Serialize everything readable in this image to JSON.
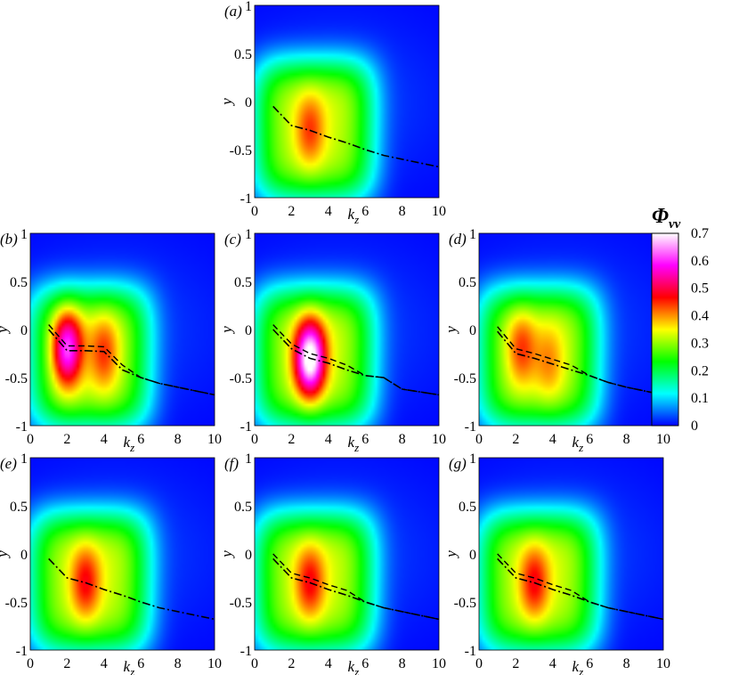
{
  "chart_data": {
    "type": "heatmap",
    "colorbar": {
      "title": "Φvv",
      "title_main": "Φ",
      "title_sub": "vv",
      "range": [
        0,
        0.7
      ],
      "ticks": [
        "0.7",
        "0.6",
        "0.5",
        "0.4",
        "0.3",
        "0.2",
        "0.1",
        "0"
      ],
      "colormap": [
        "#0000ff",
        "#00ffff",
        "#00ff00",
        "#ffff00",
        "#ff0000",
        "#ff00ff",
        "#ffffff"
      ]
    },
    "xlabel_main": "k",
    "xlabel_sub": "z",
    "ylabel": "y",
    "xlim": [
      0,
      10
    ],
    "ylim": [
      -1,
      1
    ],
    "xticks": [
      "0",
      "2",
      "4",
      "6",
      "8",
      "10"
    ],
    "yticks": [
      "1",
      "0.5",
      "0",
      "-0.5",
      "-1"
    ],
    "panels": [
      {
        "label": "(a)",
        "label_open": "(",
        "label_letter": "a",
        "label_close": ")",
        "peaks": [
          {
            "kz": 3.0,
            "y": -0.3,
            "amp": 0.42
          }
        ],
        "dash_style": "dashdot",
        "curve_kz": [
          1,
          2,
          3,
          4,
          5,
          6,
          7,
          8,
          9,
          10
        ],
        "curve_y": [
          -0.05,
          -0.25,
          -0.3,
          -0.37,
          -0.43,
          -0.5,
          -0.56,
          -0.6,
          -0.64,
          -0.68
        ]
      },
      {
        "label": "(b)",
        "label_open": "(",
        "label_letter": "b",
        "label_close": ")",
        "peaks": [
          {
            "kz": 2.0,
            "y": -0.2,
            "amp": 0.6
          },
          {
            "kz": 4.0,
            "y": -0.25,
            "amp": 0.42
          }
        ],
        "dash_style": "mixed",
        "curve_kz": [
          1,
          2,
          3,
          4,
          5,
          6,
          7,
          8,
          9,
          10
        ],
        "curve_y": [
          0.0,
          -0.22,
          -0.22,
          -0.23,
          -0.42,
          -0.5,
          -0.56,
          -0.6,
          -0.64,
          -0.68
        ]
      },
      {
        "label": "(c)",
        "label_open": "(",
        "label_letter": "c",
        "label_close": ")",
        "peaks": [
          {
            "kz": 3.0,
            "y": -0.3,
            "amp": 0.72
          }
        ],
        "dash_style": "mixed",
        "curve_kz": [
          1,
          2,
          3,
          4,
          5,
          6,
          7,
          8,
          9,
          10
        ],
        "curve_y": [
          0.0,
          -0.2,
          -0.3,
          -0.35,
          -0.42,
          -0.48,
          -0.5,
          -0.62,
          -0.65,
          -0.68
        ]
      },
      {
        "label": "(d)",
        "label_open": "(",
        "label_letter": "d",
        "label_close": ")",
        "peaks": [
          {
            "kz": 2.3,
            "y": -0.2,
            "amp": 0.42
          },
          {
            "kz": 3.8,
            "y": -0.35,
            "amp": 0.38
          }
        ],
        "dash_style": "mixed",
        "curve_kz": [
          1,
          2,
          3,
          4,
          5,
          6,
          7,
          8,
          9,
          10
        ],
        "curve_y": [
          -0.02,
          -0.25,
          -0.3,
          -0.36,
          -0.42,
          -0.48,
          -0.55,
          -0.6,
          -0.64,
          -0.68
        ]
      },
      {
        "label": "(e)",
        "label_open": "(",
        "label_letter": "e",
        "label_close": ")",
        "peaks": [
          {
            "kz": 3.0,
            "y": -0.3,
            "amp": 0.45
          }
        ],
        "dash_style": "dashdot",
        "curve_kz": [
          1,
          2,
          3,
          4,
          5,
          6,
          7,
          8,
          9,
          10
        ],
        "curve_y": [
          -0.05,
          -0.25,
          -0.3,
          -0.37,
          -0.43,
          -0.5,
          -0.56,
          -0.6,
          -0.64,
          -0.68
        ]
      },
      {
        "label": "(f)",
        "label_open": "(",
        "label_letter": "f",
        "label_close": ")",
        "peaks": [
          {
            "kz": 3.0,
            "y": -0.3,
            "amp": 0.45
          }
        ],
        "dash_style": "mixed",
        "curve_kz": [
          1,
          2,
          3,
          4,
          5,
          6,
          7,
          8,
          9,
          10
        ],
        "curve_y": [
          -0.05,
          -0.25,
          -0.3,
          -0.37,
          -0.43,
          -0.5,
          -0.56,
          -0.6,
          -0.64,
          -0.68
        ]
      },
      {
        "label": "(g)",
        "label_open": "(",
        "label_letter": "g",
        "label_close": ")",
        "peaks": [
          {
            "kz": 3.0,
            "y": -0.3,
            "amp": 0.45
          }
        ],
        "dash_style": "mixed",
        "curve_kz": [
          1,
          2,
          3,
          4,
          5,
          6,
          7,
          8,
          9,
          10
        ],
        "curve_y": [
          -0.05,
          -0.25,
          -0.3,
          -0.37,
          -0.43,
          -0.5,
          -0.56,
          -0.6,
          -0.64,
          -0.68
        ]
      }
    ]
  }
}
